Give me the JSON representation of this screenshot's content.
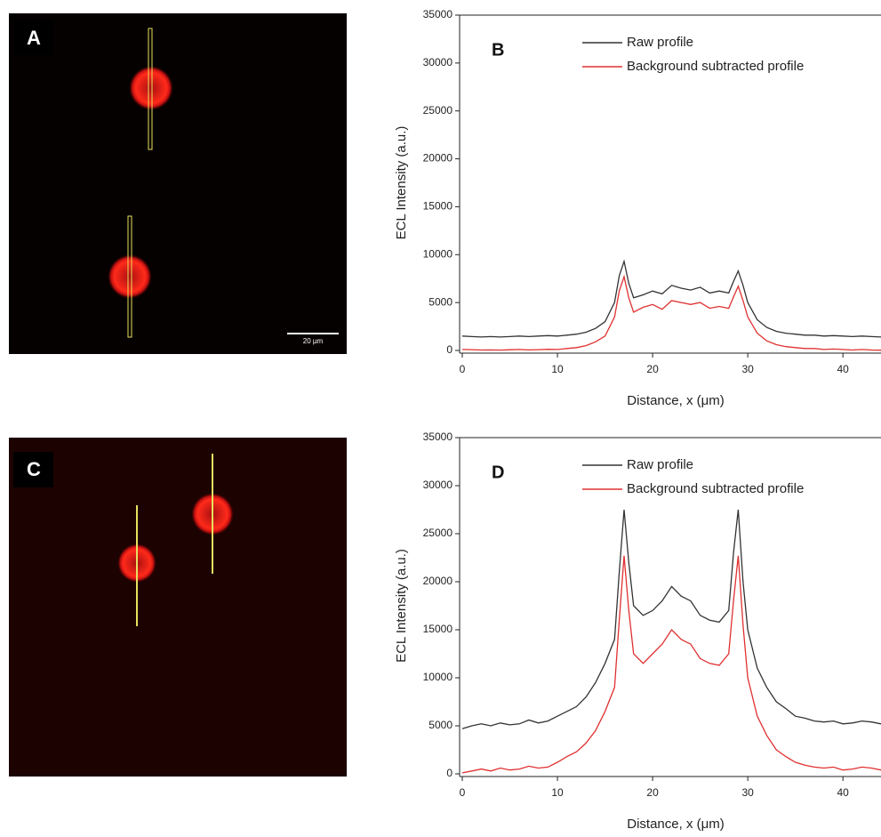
{
  "images": [
    {
      "label": "A",
      "scale_bar": "20 µm"
    },
    {
      "label": "C"
    }
  ],
  "chart_data": [
    {
      "type": "line",
      "panel_label": "B",
      "xlabel": "Distance, x (μm)",
      "ylabel": "ECL Intensity (a.u.)",
      "xlim": [
        0,
        44
      ],
      "ylim": [
        0,
        35000
      ],
      "xticks": [
        0,
        10,
        20,
        30,
        40
      ],
      "yticks": [
        0,
        5000,
        10000,
        15000,
        20000,
        25000,
        30000,
        35000
      ],
      "legend": "upper center",
      "x": [
        0,
        1,
        2,
        3,
        4,
        5,
        6,
        7,
        8,
        9,
        10,
        11,
        12,
        13,
        14,
        15,
        16,
        16.5,
        17,
        17.5,
        18,
        19,
        20,
        21,
        22,
        23,
        24,
        25,
        26,
        27,
        28,
        28.5,
        29,
        29.5,
        30,
        31,
        32,
        33,
        34,
        35,
        36,
        37,
        38,
        39,
        40,
        41,
        42,
        43,
        44
      ],
      "series": [
        {
          "name": "Raw profile",
          "color": "#333333",
          "values": [
            1500,
            1450,
            1400,
            1450,
            1400,
            1450,
            1500,
            1450,
            1500,
            1550,
            1500,
            1600,
            1700,
            1900,
            2300,
            3000,
            5000,
            7800,
            9300,
            7000,
            5500,
            5800,
            6200,
            5900,
            6800,
            6500,
            6300,
            6600,
            6000,
            6200,
            6000,
            7200,
            8300,
            6800,
            5000,
            3200,
            2400,
            2000,
            1800,
            1700,
            1600,
            1600,
            1500,
            1550,
            1500,
            1450,
            1500,
            1450,
            1400
          ]
        },
        {
          "name": "Background subtracted profile",
          "color": "#e03030",
          "values": [
            100,
            80,
            50,
            60,
            40,
            70,
            100,
            60,
            80,
            120,
            100,
            200,
            300,
            500,
            900,
            1500,
            3500,
            6200,
            7700,
            5500,
            4000,
            4500,
            4800,
            4300,
            5200,
            5000,
            4800,
            5000,
            4400,
            4600,
            4400,
            5600,
            6700,
            5200,
            3500,
            1800,
            1000,
            600,
            400,
            300,
            200,
            200,
            100,
            150,
            100,
            50,
            100,
            50,
            30
          ]
        }
      ]
    },
    {
      "type": "line",
      "panel_label": "D",
      "xlabel": "Distance, x (μm)",
      "ylabel": "ECL Intensity (a.u.)",
      "xlim": [
        0,
        44
      ],
      "ylim": [
        0,
        35000
      ],
      "xticks": [
        0,
        10,
        20,
        30,
        40
      ],
      "yticks": [
        0,
        5000,
        10000,
        15000,
        20000,
        25000,
        30000,
        35000
      ],
      "legend": "upper center",
      "x": [
        0,
        1,
        2,
        3,
        4,
        5,
        6,
        7,
        8,
        9,
        10,
        11,
        12,
        13,
        14,
        15,
        16,
        16.5,
        17,
        17.5,
        18,
        19,
        20,
        21,
        22,
        23,
        24,
        25,
        26,
        27,
        28,
        28.5,
        29,
        29.5,
        30,
        31,
        32,
        33,
        34,
        35,
        36,
        37,
        38,
        39,
        40,
        41,
        42,
        43,
        44
      ],
      "series": [
        {
          "name": "Raw profile",
          "color": "#333333",
          "values": [
            4700,
            5000,
            5200,
            5000,
            5300,
            5100,
            5200,
            5600,
            5300,
            5500,
            6000,
            6500,
            7000,
            8000,
            9500,
            11500,
            14000,
            21000,
            27500,
            22000,
            17500,
            16500,
            17000,
            18000,
            19500,
            18500,
            18000,
            16500,
            16000,
            15800,
            17000,
            23000,
            27500,
            20000,
            15000,
            11000,
            9000,
            7500,
            6800,
            6000,
            5800,
            5500,
            5400,
            5500,
            5200,
            5300,
            5500,
            5400,
            5200
          ]
        },
        {
          "name": "Background subtracted profile",
          "color": "#e03030",
          "values": [
            100,
            300,
            500,
            300,
            600,
            400,
            500,
            800,
            600,
            700,
            1200,
            1800,
            2300,
            3200,
            4500,
            6500,
            9000,
            16000,
            22700,
            17000,
            12500,
            11500,
            12500,
            13500,
            15000,
            14000,
            13500,
            12000,
            11500,
            11300,
            12500,
            18000,
            22700,
            15500,
            10000,
            6000,
            4000,
            2500,
            1800,
            1200,
            900,
            700,
            600,
            700,
            400,
            500,
            700,
            600,
            400
          ]
        }
      ]
    }
  ]
}
